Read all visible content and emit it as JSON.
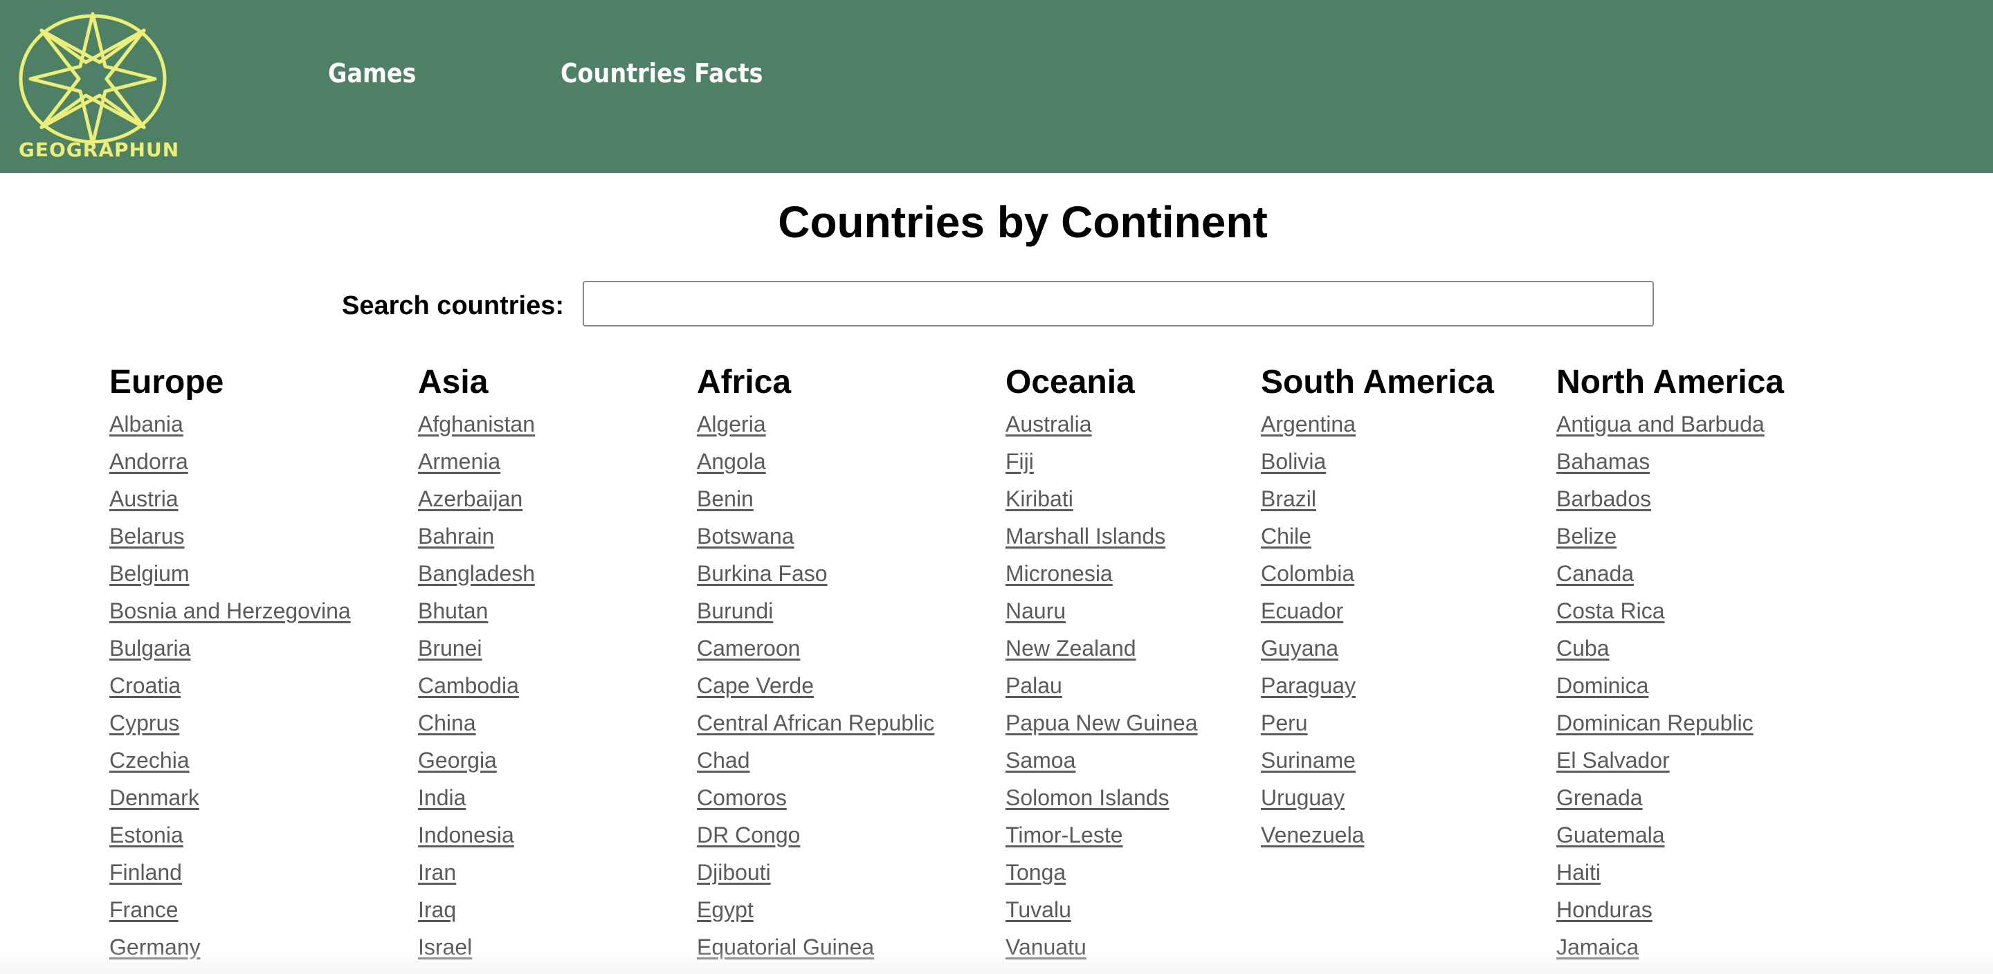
{
  "header": {
    "logo_text": "GEOGRAPHUN",
    "logo_color": "#ecee7a",
    "background": "#4e8065",
    "nav": [
      {
        "label": "Games"
      },
      {
        "label": "Countries Facts"
      }
    ]
  },
  "main": {
    "title": "Countries by Continent",
    "search": {
      "label": "Search countries:",
      "value": "",
      "placeholder": ""
    },
    "continents": [
      {
        "name": "Europe",
        "countries": [
          "Albania",
          "Andorra",
          "Austria",
          "Belarus",
          "Belgium",
          "Bosnia and Herzegovina",
          "Bulgaria",
          "Croatia",
          "Cyprus",
          "Czechia",
          "Denmark",
          "Estonia",
          "Finland",
          "France",
          "Germany"
        ]
      },
      {
        "name": "Asia",
        "countries": [
          "Afghanistan",
          "Armenia",
          "Azerbaijan",
          "Bahrain",
          "Bangladesh",
          "Bhutan",
          "Brunei",
          "Cambodia",
          "China",
          "Georgia",
          "India",
          "Indonesia",
          "Iran",
          "Iraq",
          "Israel"
        ]
      },
      {
        "name": "Africa",
        "countries": [
          "Algeria",
          "Angola",
          "Benin",
          "Botswana",
          "Burkina Faso",
          "Burundi",
          "Cameroon",
          "Cape Verde",
          "Central African Republic",
          "Chad",
          "Comoros",
          "DR Congo",
          "Djibouti",
          "Egypt",
          "Equatorial Guinea"
        ]
      },
      {
        "name": "Oceania",
        "countries": [
          "Australia",
          "Fiji",
          "Kiribati",
          "Marshall Islands",
          "Micronesia",
          "Nauru",
          "New Zealand",
          "Palau",
          "Papua New Guinea",
          "Samoa",
          "Solomon Islands",
          "Timor-Leste",
          "Tonga",
          "Tuvalu",
          "Vanuatu"
        ]
      },
      {
        "name": "South America",
        "countries": [
          "Argentina",
          "Bolivia",
          "Brazil",
          "Chile",
          "Colombia",
          "Ecuador",
          "Guyana",
          "Paraguay",
          "Peru",
          "Suriname",
          "Uruguay",
          "Venezuela"
        ]
      },
      {
        "name": "North America",
        "countries": [
          "Antigua and Barbuda",
          "Bahamas",
          "Barbados",
          "Belize",
          "Canada",
          "Costa Rica",
          "Cuba",
          "Dominica",
          "Dominican Republic",
          "El Salvador",
          "Grenada",
          "Guatemala",
          "Haiti",
          "Honduras",
          "Jamaica"
        ]
      }
    ]
  }
}
